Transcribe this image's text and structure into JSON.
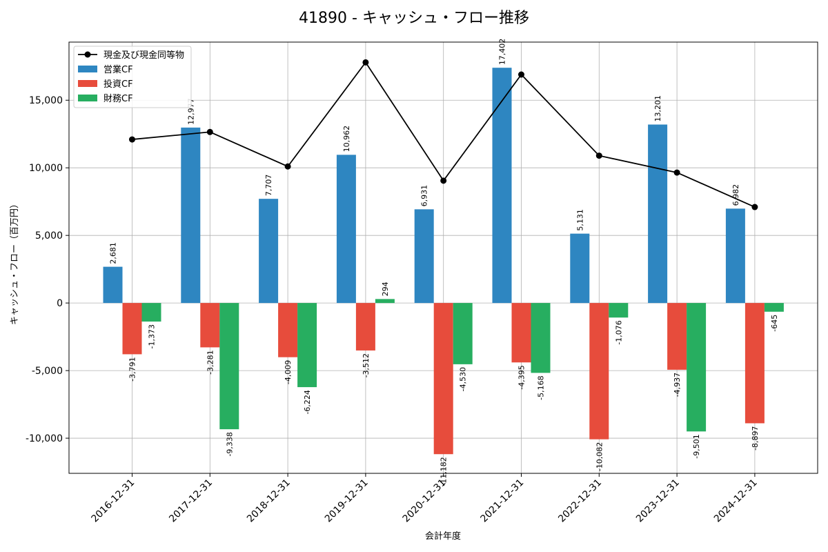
{
  "chart_data": {
    "type": "bar",
    "title": "41890 - キャッシュ・フロー推移",
    "xlabel": "会計年度",
    "ylabel": "キャッシュ・フロー（百万円）",
    "ylim": [
      -12600,
      19300
    ],
    "yticks": [
      -10000,
      -5000,
      0,
      5000,
      10000,
      15000
    ],
    "ytick_labels": [
      "-10,000",
      "-5,000",
      "0",
      "5,000",
      "10,000",
      "15,000"
    ],
    "categories": [
      "2016-12-31",
      "2017-12-31",
      "2018-12-31",
      "2019-12-31",
      "2020-12-31",
      "2021-12-31",
      "2022-12-31",
      "2023-12-31",
      "2024-12-31"
    ],
    "grid": true,
    "legend_position": "top-left",
    "series": [
      {
        "name": "営業CF",
        "kind": "bar",
        "color": "#2e86c1",
        "values": [
          2681,
          12977,
          7707,
          10962,
          6931,
          17402,
          5131,
          13201,
          6982
        ],
        "labels": [
          "2,681",
          "12,977",
          "7,707",
          "10,962",
          "6,931",
          "17,402",
          "5,131",
          "13,201",
          "6,982"
        ]
      },
      {
        "name": "投資CF",
        "kind": "bar",
        "color": "#e74c3c",
        "values": [
          -3791,
          -3281,
          -4009,
          -3512,
          -11182,
          -4395,
          -10082,
          -4937,
          -8897
        ],
        "labels": [
          "-3,791",
          "-3,281",
          "-4,009",
          "-3,512",
          "-11,182",
          "-4,395",
          "-10,082",
          "-4,937",
          "-8,897"
        ]
      },
      {
        "name": "財務CF",
        "kind": "bar",
        "color": "#27ae60",
        "values": [
          -1373,
          -9338,
          -6224,
          294,
          -4530,
          -5168,
          -1076,
          -9501,
          -645
        ],
        "labels": [
          "-1,373",
          "-9,338",
          "-6,224",
          "294",
          "-4,530",
          "-5,168",
          "-1,076",
          "-9,501",
          "-645"
        ]
      },
      {
        "name": "現金及び現金同等物",
        "kind": "line",
        "color": "#000000",
        "values": [
          12100,
          12650,
          10100,
          17800,
          9050,
          16900,
          10900,
          9650,
          7100
        ]
      }
    ]
  }
}
